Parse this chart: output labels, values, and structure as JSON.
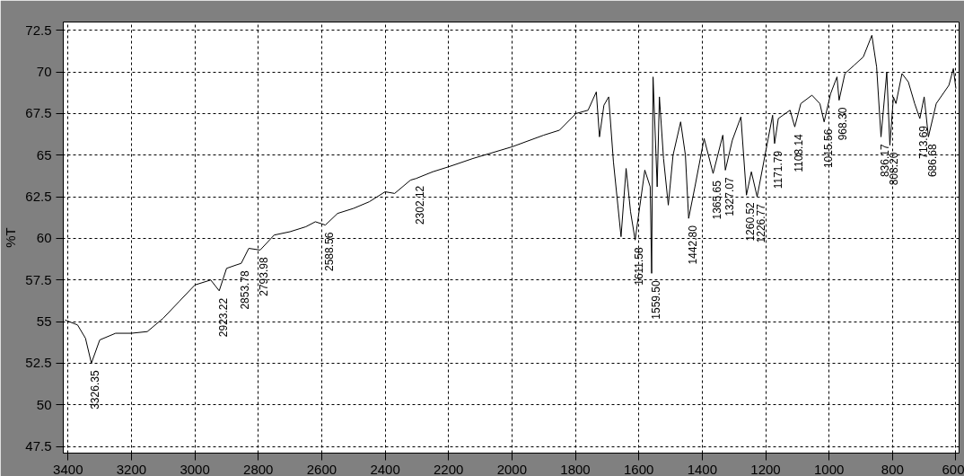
{
  "chart_data": {
    "type": "line",
    "ylabel": "%T",
    "x": [
      3410,
      3370,
      3345,
      3326.35,
      3300,
      3250,
      3200,
      3150,
      3100,
      3050,
      3000,
      2950,
      2923.22,
      2900,
      2870,
      2853.78,
      2830,
      2793.98,
      2750,
      2700,
      2650,
      2620,
      2588.56,
      2550,
      2500,
      2450,
      2400,
      2370,
      2320,
      2302.12,
      2250,
      2200,
      2123,
      2000,
      1900,
      1850,
      1798,
      1760,
      1734,
      1724,
      1710,
      1695,
      1680,
      1656,
      1640,
      1626,
      1611.58,
      1581,
      1564,
      1559.5,
      1555,
      1542,
      1535,
      1522,
      1507,
      1492,
      1468,
      1453,
      1442.8,
      1423,
      1394,
      1365.65,
      1335,
      1327.07,
      1305,
      1278,
      1260.52,
      1245,
      1226.77,
      1192,
      1178,
      1171.79,
      1160,
      1123,
      1108.14,
      1089,
      1054,
      1029,
      1015.56,
      995,
      975,
      968.3,
      950,
      921,
      892,
      865,
      850,
      836.17,
      818,
      808.2,
      797,
      789,
      770,
      750,
      730,
      713.69,
      700,
      686.68,
      662,
      622,
      608,
      600
    ],
    "values": [
      55.1,
      54.8,
      54.0,
      52.5,
      53.9,
      54.3,
      54.3,
      54.4,
      55.2,
      56.2,
      57.2,
      57.5,
      56.85,
      58.2,
      58.4,
      58.5,
      59.4,
      59.3,
      60.2,
      60.4,
      60.7,
      61.0,
      60.8,
      61.5,
      61.8,
      62.2,
      62.8,
      62.7,
      63.5,
      63.6,
      64.0,
      64.3,
      64.8,
      65.5,
      66.2,
      66.5,
      67.5,
      67.7,
      68.8,
      66.1,
      68.0,
      68.5,
      64.6,
      60.1,
      64.2,
      61.6,
      59.9,
      64.1,
      63.1,
      57.9,
      69.7,
      63.1,
      68.5,
      64.8,
      62.0,
      65.0,
      67.0,
      65.0,
      61.2,
      63.1,
      66.0,
      63.9,
      66.2,
      64.1,
      65.9,
      67.3,
      62.6,
      64.0,
      62.5,
      66.0,
      67.4,
      65.7,
      67.2,
      67.7,
      66.7,
      68.1,
      68.6,
      68.1,
      67.0,
      68.7,
      69.7,
      68.3,
      69.9,
      70.4,
      70.9,
      72.2,
      70.3,
      66.1,
      70.0,
      65.6,
      68.5,
      68.1,
      69.9,
      69.4,
      68.1,
      67.2,
      68.5,
      66.1,
      68.1,
      69.2,
      70.2,
      69.0
    ],
    "color": "#000000",
    "marker": "none",
    "line_style": "solid",
    "grid": true,
    "xlim": [
      3415,
      590
    ],
    "ylim": [
      47.1,
      73
    ],
    "xticks": [
      3400,
      3200,
      3000,
      2800,
      2600,
      2400,
      2200,
      2000,
      1800,
      1600,
      1400,
      1200,
      1000,
      800,
      600
    ],
    "yticks": [
      47.5,
      50,
      52.5,
      55,
      57.5,
      60,
      62.5,
      65,
      67.5,
      70,
      72.5
    ],
    "annotations": [
      {
        "text": "3326.35",
        "x": 3326.35,
        "y": 52.5
      },
      {
        "text": "2923.22",
        "x": 2923.22,
        "y": 56.85
      },
      {
        "text": "2853.78",
        "x": 2853.78,
        "y": 58.5
      },
      {
        "text": "2793.98",
        "x": 2793.98,
        "y": 59.3
      },
      {
        "text": "2588.56",
        "x": 2588.56,
        "y": 60.8
      },
      {
        "text": "2302.12",
        "x": 2302.12,
        "y": 63.6
      },
      {
        "text": "1611.58",
        "x": 1611.58,
        "y": 59.9
      },
      {
        "text": "1559.50",
        "x": 1559.5,
        "y": 57.9
      },
      {
        "text": "1442.80",
        "x": 1442.8,
        "y": 61.2
      },
      {
        "text": "1365.65",
        "x": 1365.65,
        "y": 63.9
      },
      {
        "text": "1327.07",
        "x": 1327.07,
        "y": 64.1
      },
      {
        "text": "1260.52",
        "x": 1260.52,
        "y": 62.6
      },
      {
        "text": "1226.77",
        "x": 1226.77,
        "y": 62.5
      },
      {
        "text": "1171.79",
        "x": 1171.79,
        "y": 65.7
      },
      {
        "text": "1108.14",
        "x": 1108.14,
        "y": 66.7
      },
      {
        "text": "1015.56",
        "x": 1015.56,
        "y": 67.0
      },
      {
        "text": "968.30",
        "x": 968.3,
        "y": 68.3
      },
      {
        "text": "836.17",
        "x": 836.17,
        "y": 66.1
      },
      {
        "text": "808.20",
        "x": 808.2,
        "y": 65.6
      },
      {
        "text": "713.69",
        "x": 713.69,
        "y": 67.2
      },
      {
        "text": "686.68",
        "x": 686.68,
        "y": 66.1
      }
    ]
  }
}
